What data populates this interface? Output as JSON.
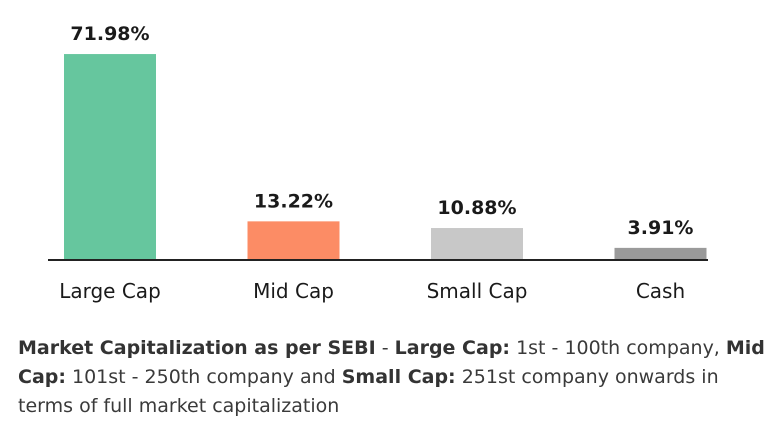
{
  "chart_data": {
    "type": "bar",
    "categories": [
      "Large Cap",
      "Mid Cap",
      "Small Cap",
      "Cash"
    ],
    "values": [
      71.98,
      13.22,
      10.88,
      3.91
    ],
    "value_labels": [
      "71.98%",
      "13.22%",
      "10.88%",
      "3.91%"
    ],
    "colors": [
      "#66c69e",
      "#fc8c65",
      "#c8c8c8",
      "#9a9a9a"
    ],
    "title": "",
    "xlabel": "",
    "ylabel": "",
    "ylim": [
      0,
      72
    ],
    "grid": false,
    "legend": "none"
  },
  "footnote": {
    "heading": "Market Capitalization as per SEBI",
    "sep1": " - ",
    "large_label": "Large Cap:",
    "large_text": " 1st - 100th company, ",
    "mid_label": "Mid Cap:",
    "mid_text": " 101st - 250th company and ",
    "small_label": "Small Cap:",
    "small_text": " 251st company onwards in terms of full market capitalization"
  }
}
